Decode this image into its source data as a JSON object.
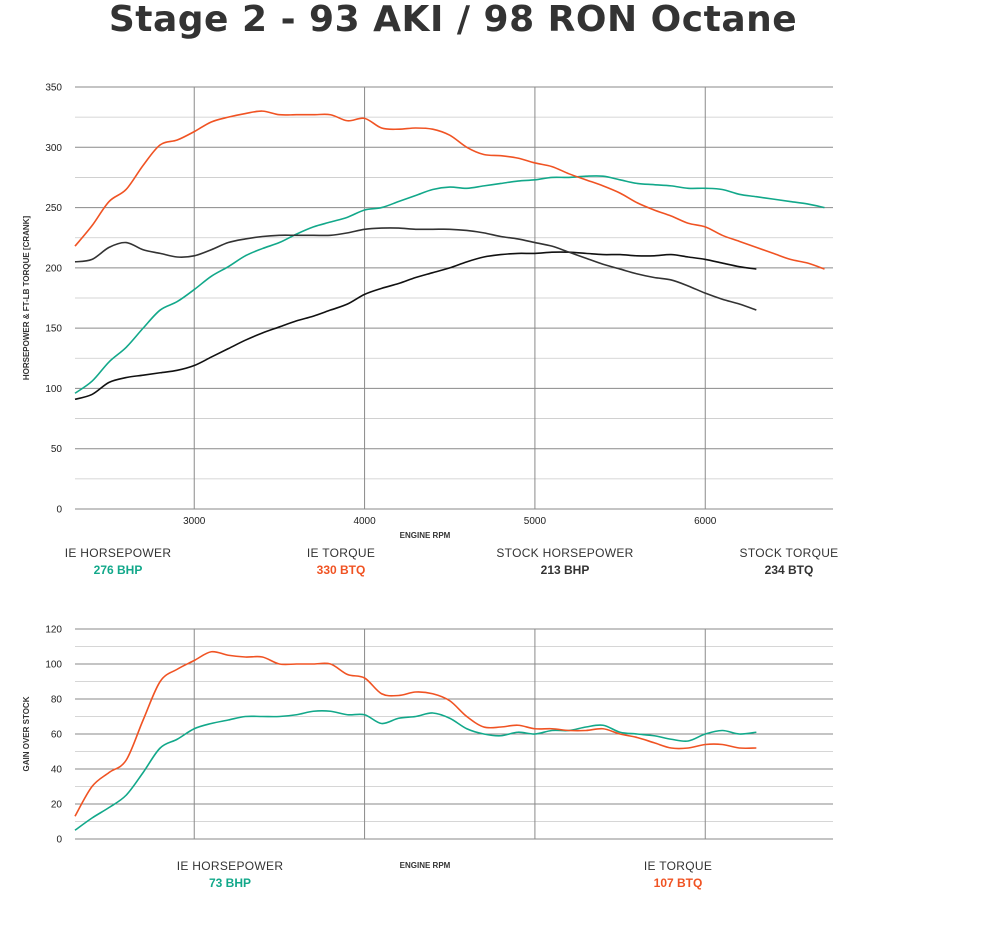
{
  "title": "Stage 2 - 93 AKI / 98 RON Octane",
  "colors": {
    "hp": "#12a88a",
    "tq": "#f05323",
    "stock_hp": "#111111",
    "stock_tq": "#333333"
  },
  "legend_main": [
    {
      "name": "IE HORSEPOWER",
      "value": "276 BHP",
      "color": "#12a88a"
    },
    {
      "name": "IE TORQUE",
      "value": "330 BTQ",
      "color": "#f05323"
    },
    {
      "name": "STOCK HORSEPOWER",
      "value": "213 BHP",
      "color": "#333333"
    },
    {
      "name": "STOCK TORQUE",
      "value": "234 BTQ",
      "color": "#333333"
    }
  ],
  "legend_gain": [
    {
      "name": "IE HORSEPOWER",
      "value": "73 BHP",
      "color": "#12a88a"
    },
    {
      "name": "IE TORQUE",
      "value": "107 BTQ",
      "color": "#f05323"
    }
  ],
  "chart_data": [
    {
      "type": "line",
      "title": "Stage 2 - 93 AKI / 98 RON Octane",
      "xlabel": "ENGINE RPM",
      "ylabel": "HORSEPOWER & FT-LB TORQUE [CRANK]",
      "xlim": [
        2300,
        6750
      ],
      "ylim": [
        0,
        350
      ],
      "xticks": [
        3000,
        4000,
        5000,
        6000
      ],
      "yticks": [
        0,
        50,
        100,
        150,
        200,
        250,
        300,
        350
      ],
      "grid": true,
      "series": [
        {
          "name": "IE HORSEPOWER",
          "color": "#12a88a",
          "x": [
            2300,
            2400,
            2500,
            2600,
            2700,
            2800,
            2900,
            3000,
            3100,
            3200,
            3300,
            3400,
            3500,
            3600,
            3700,
            3800,
            3900,
            4000,
            4100,
            4200,
            4300,
            4400,
            4500,
            4600,
            4700,
            4800,
            4900,
            5000,
            5100,
            5200,
            5300,
            5400,
            5500,
            5600,
            5700,
            5800,
            5900,
            6000,
            6100,
            6200,
            6300,
            6400,
            6500,
            6600,
            6700
          ],
          "y": [
            96,
            106,
            122,
            134,
            150,
            165,
            172,
            182,
            193,
            201,
            210,
            216,
            221,
            228,
            234,
            238,
            242,
            248,
            250,
            255,
            260,
            265,
            267,
            266,
            268,
            270,
            272,
            273,
            275,
            275,
            276,
            276,
            273,
            270,
            269,
            268,
            266,
            266,
            265,
            261,
            259,
            257,
            255,
            253,
            250
          ]
        },
        {
          "name": "IE TORQUE",
          "color": "#f05323",
          "x": [
            2300,
            2400,
            2500,
            2600,
            2700,
            2800,
            2900,
            3000,
            3100,
            3200,
            3300,
            3400,
            3500,
            3600,
            3700,
            3800,
            3900,
            4000,
            4100,
            4200,
            4300,
            4400,
            4500,
            4600,
            4700,
            4800,
            4900,
            5000,
            5100,
            5200,
            5300,
            5400,
            5500,
            5600,
            5700,
            5800,
            5900,
            6000,
            6100,
            6200,
            6300,
            6400,
            6500,
            6600,
            6700
          ],
          "y": [
            218,
            235,
            255,
            265,
            285,
            302,
            306,
            313,
            321,
            325,
            328,
            330,
            327,
            327,
            327,
            327,
            322,
            324,
            316,
            315,
            316,
            315,
            310,
            300,
            294,
            293,
            291,
            287,
            284,
            278,
            273,
            268,
            262,
            254,
            248,
            243,
            237,
            234,
            227,
            222,
            217,
            212,
            207,
            204,
            199
          ]
        },
        {
          "name": "STOCK HORSEPOWER",
          "color": "#111111",
          "x": [
            2300,
            2400,
            2500,
            2600,
            2700,
            2800,
            2900,
            3000,
            3100,
            3200,
            3300,
            3400,
            3500,
            3600,
            3700,
            3800,
            3900,
            4000,
            4100,
            4200,
            4300,
            4400,
            4500,
            4600,
            4700,
            4800,
            4900,
            5000,
            5100,
            5200,
            5300,
            5400,
            5500,
            5600,
            5700,
            5800,
            5900,
            6000,
            6100,
            6200,
            6300
          ],
          "y": [
            91,
            95,
            105,
            109,
            111,
            113,
            115,
            119,
            126,
            133,
            140,
            146,
            151,
            156,
            160,
            165,
            170,
            178,
            183,
            187,
            192,
            196,
            200,
            205,
            209,
            211,
            212,
            212,
            213,
            213,
            212,
            211,
            211,
            210,
            210,
            211,
            209,
            207,
            204,
            201,
            199
          ]
        },
        {
          "name": "STOCK TORQUE",
          "color": "#333333",
          "x": [
            2300,
            2400,
            2500,
            2600,
            2700,
            2800,
            2900,
            3000,
            3100,
            3200,
            3300,
            3400,
            3500,
            3600,
            3700,
            3800,
            3900,
            4000,
            4100,
            4200,
            4300,
            4400,
            4500,
            4600,
            4700,
            4800,
            4900,
            5000,
            5100,
            5200,
            5300,
            5400,
            5500,
            5600,
            5700,
            5800,
            5900,
            6000,
            6100,
            6200,
            6300
          ],
          "y": [
            205,
            207,
            217,
            221,
            215,
            212,
            209,
            210,
            215,
            221,
            224,
            226,
            227,
            227,
            227,
            227,
            229,
            232,
            233,
            233,
            232,
            232,
            232,
            231,
            229,
            226,
            224,
            221,
            218,
            213,
            208,
            203,
            199,
            195,
            192,
            190,
            185,
            179,
            174,
            170,
            165
          ]
        }
      ]
    },
    {
      "type": "line",
      "xlabel": "ENGINE RPM",
      "ylabel": "GAIN OVER STOCK",
      "xlim": [
        2300,
        6750
      ],
      "ylim": [
        0,
        120
      ],
      "xticks": [],
      "yticks": [
        0,
        20,
        40,
        60,
        80,
        100,
        120
      ],
      "grid": true,
      "series": [
        {
          "name": "IE HORSEPOWER",
          "color": "#12a88a",
          "x": [
            2300,
            2400,
            2500,
            2600,
            2700,
            2800,
            2900,
            3000,
            3100,
            3200,
            3300,
            3400,
            3500,
            3600,
            3700,
            3800,
            3900,
            4000,
            4100,
            4200,
            4300,
            4400,
            4500,
            4600,
            4700,
            4800,
            4900,
            5000,
            5100,
            5200,
            5300,
            5400,
            5500,
            5600,
            5700,
            5800,
            5900,
            6000,
            6100,
            6200,
            6300
          ],
          "y": [
            5,
            12,
            18,
            25,
            38,
            52,
            57,
            63,
            66,
            68,
            70,
            70,
            70,
            71,
            73,
            73,
            71,
            71,
            66,
            69,
            70,
            72,
            69,
            63,
            60,
            59,
            61,
            60,
            62,
            62,
            64,
            65,
            61,
            60,
            59,
            57,
            56,
            60,
            62,
            60,
            61
          ]
        },
        {
          "name": "IE TORQUE",
          "color": "#f05323",
          "x": [
            2300,
            2400,
            2500,
            2600,
            2700,
            2800,
            2900,
            3000,
            3100,
            3200,
            3300,
            3400,
            3500,
            3600,
            3700,
            3800,
            3900,
            4000,
            4100,
            4200,
            4300,
            4400,
            4500,
            4600,
            4700,
            4800,
            4900,
            5000,
            5100,
            5200,
            5300,
            5400,
            5500,
            5600,
            5700,
            5800,
            5900,
            6000,
            6100,
            6200,
            6300
          ],
          "y": [
            13,
            30,
            38,
            45,
            68,
            90,
            97,
            102,
            107,
            105,
            104,
            104,
            100,
            100,
            100,
            100,
            94,
            92,
            83,
            82,
            84,
            83,
            79,
            70,
            64,
            64,
            65,
            63,
            63,
            62,
            62,
            63,
            60,
            58,
            55,
            52,
            52,
            54,
            54,
            52,
            52
          ]
        }
      ]
    }
  ]
}
